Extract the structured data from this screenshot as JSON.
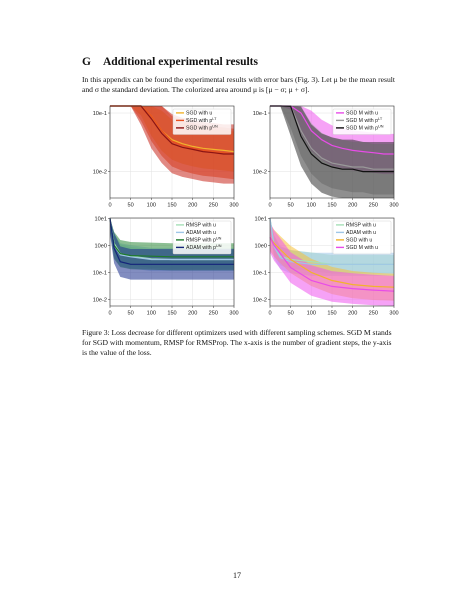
{
  "section": {
    "number": "G",
    "title": "Additional experimental results"
  },
  "intro_text": "In this appendix can be found the experimental results with error bars (Fig. 3). Let μ be the mean result and σ the standard deviation. The colorized area around μ is [μ − σ; μ + σ].",
  "caption": "Figure 3: Loss decrease for different optimizers used with different sampling schemes. SGD M stands for SGD with momentum, RMSP for RMSProp. The x-axis is the number of gradient steps, the y-axis is the value of the loss.",
  "page_number": "17",
  "chart_data": [
    {
      "type": "line",
      "panel": "top-left",
      "xlim": [
        0,
        300
      ],
      "x_ticks": [
        "0",
        "50",
        "100",
        "150",
        "200",
        "250",
        "300"
      ],
      "y_scale": "log",
      "y_ticks": [
        "10e-1",
        "10e-2"
      ],
      "legend_position": "top-right",
      "series": [
        {
          "name": "SGD with u",
          "color": "#f2b32c",
          "band_color": "#f5c13a",
          "x": [
            0,
            25,
            50,
            75,
            100,
            125,
            150,
            175,
            200,
            225,
            250,
            275,
            300
          ],
          "y": [
            1.5,
            0.9,
            0.45,
            0.2,
            0.09,
            0.05,
            0.035,
            0.03,
            0.027,
            0.025,
            0.024,
            0.023,
            0.022
          ]
        },
        {
          "name": "SGD with p^{LT}",
          "color": "#e8501f",
          "band_color": "#e8501f",
          "x": [
            0,
            25,
            50,
            75,
            100,
            125,
            150,
            175,
            200,
            225,
            250,
            275,
            300
          ],
          "y": [
            1.5,
            0.9,
            0.45,
            0.2,
            0.09,
            0.05,
            0.033,
            0.028,
            0.025,
            0.023,
            0.022,
            0.021,
            0.02
          ]
        },
        {
          "name": "SGD with p^{UN}",
          "color": "#8b1414",
          "band_color": "#c8281e",
          "x": [
            0,
            25,
            50,
            75,
            100,
            125,
            150,
            175,
            200,
            225,
            250,
            275,
            300
          ],
          "y": [
            1.5,
            0.9,
            0.45,
            0.2,
            0.08,
            0.045,
            0.03,
            0.026,
            0.024,
            0.022,
            0.021,
            0.02,
            0.02
          ]
        }
      ]
    },
    {
      "type": "line",
      "panel": "top-right",
      "xlim": [
        0,
        300
      ],
      "x_ticks": [
        "0",
        "50",
        "100",
        "150",
        "200",
        "250",
        "300"
      ],
      "y_scale": "log",
      "y_ticks": [
        "10e-1",
        "10e-2"
      ],
      "legend_position": "top-right",
      "series": [
        {
          "name": "SGD M with u",
          "color": "#e84ce8",
          "band_color": "#ee55ee",
          "x": [
            0,
            25,
            50,
            75,
            100,
            125,
            150,
            175,
            200,
            225,
            250,
            275,
            300
          ],
          "y": [
            1.2,
            0.6,
            0.25,
            0.1,
            0.05,
            0.035,
            0.028,
            0.025,
            0.023,
            0.022,
            0.021,
            0.02,
            0.02
          ]
        },
        {
          "name": "SGD M with p^{LT}",
          "color": "#999999",
          "band_color": "#aaaaaa",
          "x": [
            0,
            25,
            50,
            75,
            100,
            125,
            150,
            175,
            200,
            225,
            250,
            275,
            300
          ],
          "y": [
            1.2,
            0.5,
            0.15,
            0.05,
            0.025,
            0.017,
            0.014,
            0.013,
            0.012,
            0.012,
            0.011,
            0.011,
            0.011
          ]
        },
        {
          "name": "SGD M with p^{UN}",
          "color": "#111111",
          "band_color": "#333333",
          "x": [
            0,
            25,
            50,
            75,
            100,
            125,
            150,
            175,
            200,
            225,
            250,
            275,
            300
          ],
          "y": [
            1.2,
            0.45,
            0.13,
            0.04,
            0.02,
            0.014,
            0.012,
            0.011,
            0.011,
            0.01,
            0.01,
            0.01,
            0.01
          ]
        }
      ]
    },
    {
      "type": "line",
      "panel": "bottom-left",
      "xlim": [
        0,
        300
      ],
      "x_ticks": [
        "0",
        "50",
        "100",
        "150",
        "200",
        "250",
        "300"
      ],
      "y_scale": "log",
      "y_ticks": [
        "10e1",
        "10e0",
        "10e-1",
        "10e-2"
      ],
      "legend_position": "top-right",
      "series": [
        {
          "name": "RMSP with u",
          "color": "#a6e0b8",
          "band_color": "#a6e0b8",
          "x": [
            0,
            10,
            25,
            50,
            100,
            150,
            200,
            250,
            300
          ],
          "y": [
            10,
            1.2,
            0.5,
            0.4,
            0.32,
            0.3,
            0.3,
            0.3,
            0.3
          ]
        },
        {
          "name": "ADAM with u",
          "color": "#9fc6e8",
          "band_color": "#9fc6e8",
          "x": [
            0,
            10,
            25,
            50,
            100,
            150,
            200,
            250,
            300
          ],
          "y": [
            10,
            1.0,
            0.45,
            0.38,
            0.3,
            0.3,
            0.3,
            0.3,
            0.3
          ]
        },
        {
          "name": "RMSP with p^{UN}",
          "color": "#1e7a2a",
          "band_color": "#2e8b3a",
          "x": [
            0,
            10,
            25,
            50,
            100,
            150,
            200,
            250,
            300
          ],
          "y": [
            10,
            1.0,
            0.5,
            0.42,
            0.4,
            0.38,
            0.38,
            0.38,
            0.38
          ]
        },
        {
          "name": "ADAM with p^{UN}",
          "color": "#14237a",
          "band_color": "#1c2f8c",
          "x": [
            0,
            10,
            25,
            50,
            100,
            150,
            200,
            250,
            300
          ],
          "y": [
            10,
            0.8,
            0.25,
            0.2,
            0.2,
            0.2,
            0.2,
            0.2,
            0.2
          ]
        }
      ]
    },
    {
      "type": "line",
      "panel": "bottom-right",
      "xlim": [
        0,
        300
      ],
      "x_ticks": [
        "0",
        "50",
        "100",
        "150",
        "200",
        "250",
        "300"
      ],
      "y_scale": "log",
      "y_ticks": [
        "10e1",
        "10e0",
        "10e-1",
        "10e-2"
      ],
      "legend_position": "top-right",
      "series": [
        {
          "name": "RMSP with u",
          "color": "#a6e0b8",
          "band_color": "#a6e0b8",
          "x": [
            0,
            10,
            25,
            50,
            100,
            150,
            200,
            250,
            300
          ],
          "y": [
            10,
            1.0,
            0.4,
            0.3,
            0.25,
            0.2,
            0.2,
            0.2,
            0.2
          ]
        },
        {
          "name": "ADAM with u",
          "color": "#9fc6e8",
          "band_color": "#9fc6e8",
          "x": [
            0,
            10,
            25,
            50,
            100,
            150,
            200,
            250,
            300
          ],
          "y": [
            10,
            0.9,
            0.35,
            0.25,
            0.2,
            0.2,
            0.2,
            0.2,
            0.2
          ]
        },
        {
          "name": "SGD with u",
          "color": "#f2b32c",
          "band_color": "#f5c13a",
          "x": [
            0,
            10,
            25,
            50,
            100,
            150,
            200,
            250,
            300
          ],
          "y": [
            2,
            1.2,
            0.7,
            0.3,
            0.1,
            0.05,
            0.035,
            0.03,
            0.028
          ]
        },
        {
          "name": "SGD M with u",
          "color": "#e84ce8",
          "band_color": "#ee55ee",
          "x": [
            0,
            10,
            25,
            50,
            100,
            150,
            200,
            250,
            300
          ],
          "y": [
            2,
            1.0,
            0.5,
            0.15,
            0.05,
            0.03,
            0.025,
            0.022,
            0.02
          ]
        }
      ]
    }
  ]
}
